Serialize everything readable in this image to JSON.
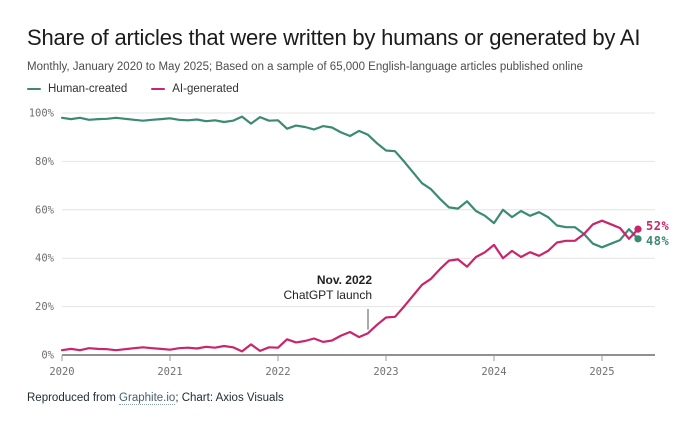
{
  "header": {
    "title": "Share of articles that were written by humans or generated by AI",
    "subtitle": "Monthly, January 2020 to May 2025; Based on a sample of 65,000 English-language articles published online"
  },
  "legend": [
    {
      "label": "Human-created",
      "color": "#3c8a74"
    },
    {
      "label": "AI-generated",
      "color": "#c9256b"
    }
  ],
  "chart_data": {
    "type": "line",
    "x_unit": "month",
    "x_start": "2020-01",
    "x_end": "2025-05",
    "n_points": 65,
    "x_tick_labels": [
      "2020",
      "2021",
      "2022",
      "2023",
      "2024",
      "2025"
    ],
    "x_tick_month_index": [
      0,
      12,
      24,
      36,
      48,
      60
    ],
    "y_tick_labels": [
      "0%",
      "20%",
      "40%",
      "60%",
      "80%",
      "100%"
    ],
    "ylim": [
      0,
      100
    ],
    "grid": "horizontal",
    "legend_position": "top-left",
    "series": [
      {
        "name": "Human-created",
        "color": "#3c8a74",
        "end_label": "48%",
        "values": [
          98,
          97.5,
          98,
          97.2,
          97.5,
          97.6,
          98,
          97.6,
          97.2,
          96.8,
          97.2,
          97.5,
          97.8,
          97.2,
          97,
          97.3,
          96.6,
          97,
          96.3,
          96.8,
          98.5,
          95.6,
          98.3,
          96.8,
          97,
          93.5,
          94.8,
          94.2,
          93.2,
          94.6,
          94,
          92,
          90.5,
          92.6,
          91,
          87.5,
          84.5,
          84.2,
          80,
          75.5,
          71,
          68.5,
          64.5,
          61,
          60.5,
          63.5,
          59.5,
          57.5,
          54.5,
          60,
          57,
          59.5,
          57.5,
          59,
          57,
          53.5,
          52.8,
          52.8,
          50,
          46,
          44.5,
          46,
          47.5,
          52,
          48
        ]
      },
      {
        "name": "AI-generated",
        "color": "#c9256b",
        "end_label": "52%",
        "values": [
          2,
          2.5,
          2,
          2.8,
          2.5,
          2.4,
          2,
          2.4,
          2.8,
          3.2,
          2.8,
          2.5,
          2.2,
          2.8,
          3,
          2.7,
          3.4,
          3,
          3.7,
          3.2,
          1.5,
          4.4,
          1.7,
          3.2,
          3,
          6.5,
          5.2,
          5.8,
          6.8,
          5.4,
          6,
          8,
          9.5,
          7.4,
          9,
          12.5,
          15.5,
          15.8,
          20,
          24.5,
          29,
          31.5,
          35.5,
          39,
          39.5,
          36.5,
          40.5,
          42.5,
          45.5,
          40,
          43,
          40.5,
          42.5,
          41,
          43,
          46.5,
          47.2,
          47.2,
          50,
          54,
          55.5,
          54,
          52.5,
          48,
          52
        ]
      }
    ],
    "annotation": {
      "line1": "Nov. 2022",
      "line2": "ChatGPT launch",
      "x_month_index": 34
    }
  },
  "footer": {
    "prefix": "Reproduced from ",
    "link": "Graphite.io",
    "suffix": "; Chart: Axios Visuals"
  }
}
